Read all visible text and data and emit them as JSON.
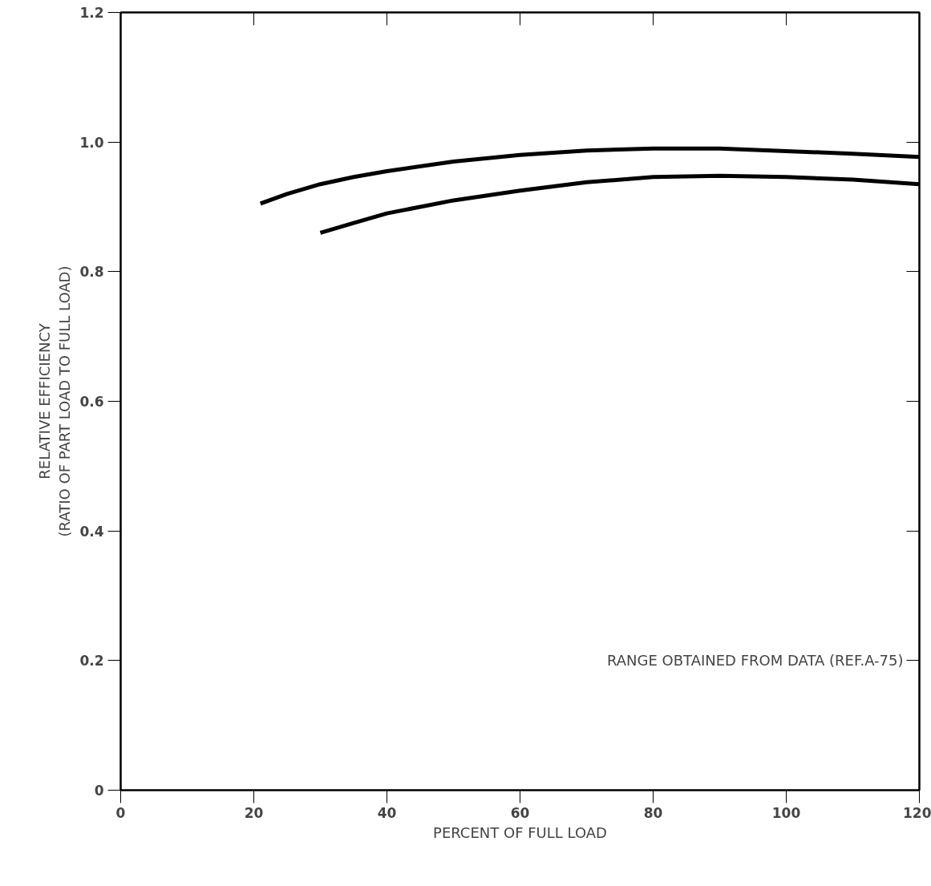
{
  "chart_data": {
    "type": "line",
    "xlabel": "PERCENT OF FULL LOAD",
    "ylabel": "RELATIVE EFFICIENCY\n(RATIO OF PART LOAD TO FULL LOAD)",
    "series": [
      {
        "color": "#000000",
        "x": [
          21,
          25,
          30,
          35,
          40,
          50,
          60,
          70,
          80,
          90,
          100,
          110,
          120
        ],
        "values": [
          0.905,
          0.92,
          0.935,
          0.946,
          0.955,
          0.97,
          0.98,
          0.987,
          0.99,
          0.99,
          0.986,
          0.982,
          0.977
        ]
      },
      {
        "color": "#000000",
        "x": [
          30,
          35,
          40,
          50,
          60,
          70,
          80,
          90,
          100,
          110,
          120
        ],
        "values": [
          0.86,
          0.875,
          0.89,
          0.91,
          0.925,
          0.938,
          0.946,
          0.948,
          0.946,
          0.942,
          0.935
        ]
      }
    ],
    "xlim": [
      0,
      120
    ],
    "ylim": [
      0,
      1.2
    ],
    "xticks": [
      0,
      20,
      40,
      60,
      80,
      100,
      120
    ],
    "yticks": [
      0,
      {
        "value": 0.2,
        "label": "0.2"
      },
      {
        "value": 0.4,
        "label": "0.4"
      },
      {
        "value": 0.6,
        "label": "0.6"
      },
      {
        "value": 0.8,
        "label": "0.8"
      },
      {
        "value": 1.0,
        "label": "1.0"
      },
      {
        "value": 1.2,
        "label": "1.2"
      }
    ],
    "annotations": [
      "RANGE OBTAINED FROM DATA (REF.A-75)"
    ],
    "grid": false,
    "marker": "none",
    "line_style": "solid"
  }
}
